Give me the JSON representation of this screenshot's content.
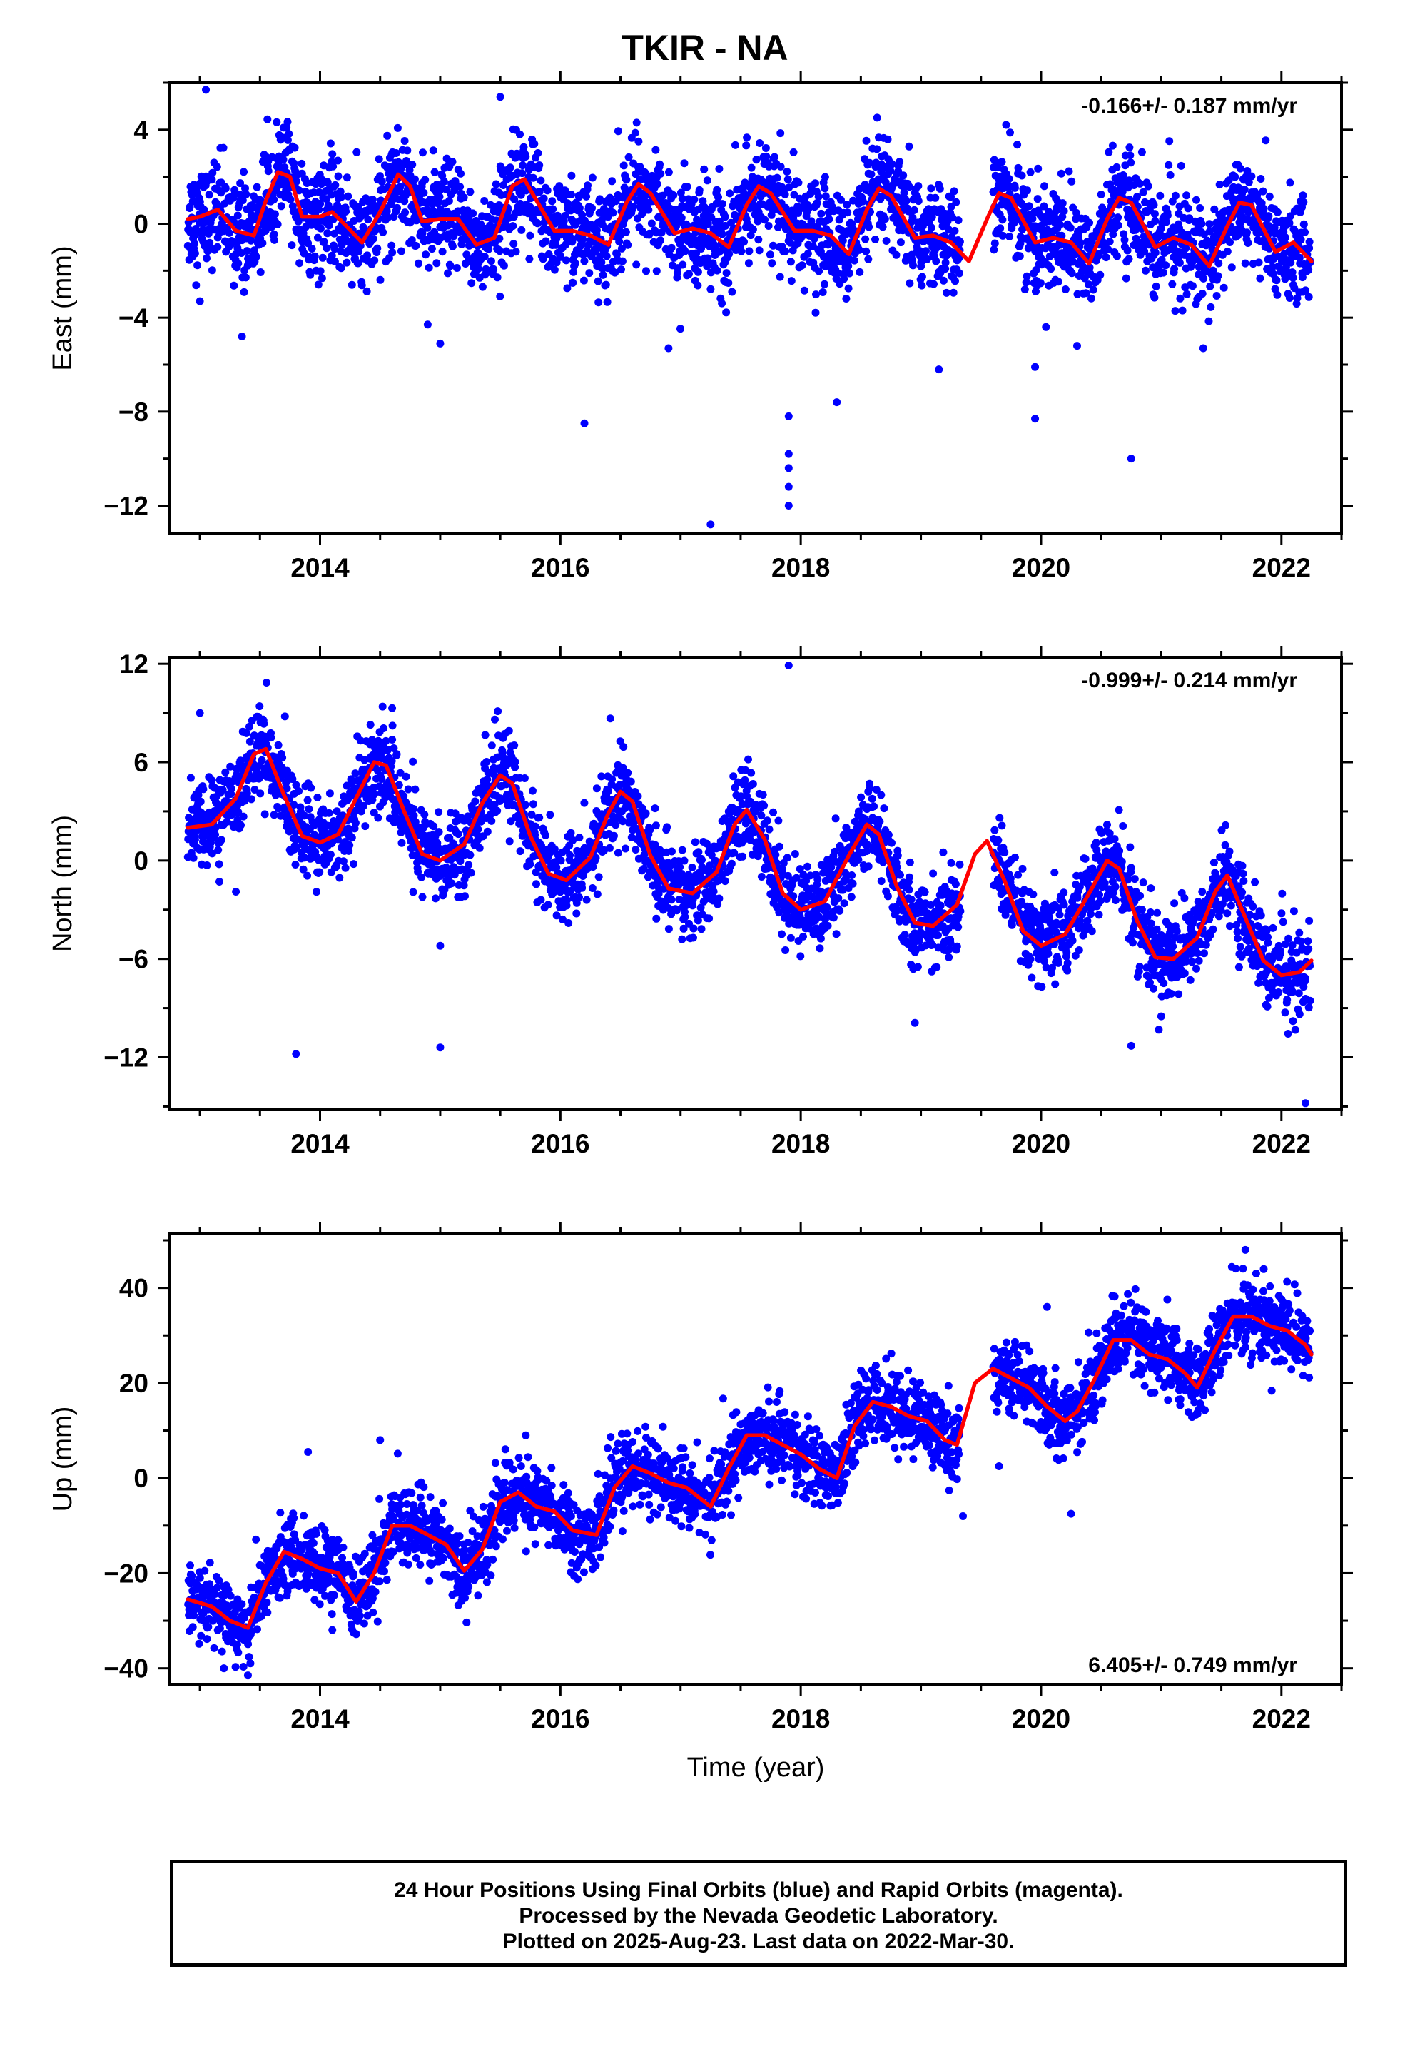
{
  "title": "TKIR - NA",
  "footer": {
    "line1": "24 Hour Positions Using Final Orbits (blue) and Rapid Orbits (magenta).",
    "line2": "Processed by the Nevada Geodetic Laboratory.",
    "line3": "Plotted on 2025-Aug-23. Last data on 2022-Mar-30."
  },
  "colors": {
    "points": "#0000ff",
    "fit": "#ff0000",
    "frame": "#000000"
  },
  "chart_data": [
    {
      "type": "scatter",
      "ylabel": "East (mm)",
      "xlabel": "",
      "xlim": [
        2012.75,
        2022.5
      ],
      "ylim": [
        -13.2,
        6.0
      ],
      "xticks": [
        2014,
        2016,
        2018,
        2020,
        2022
      ],
      "yticks": [
        4,
        0,
        -4,
        -8,
        -12
      ],
      "rate_label": "-0.166+/- 0.187 mm/yr",
      "rate_position": "top-right",
      "fit": {
        "x": [
          2012.9,
          2013.0,
          2013.15,
          2013.3,
          2013.45,
          2013.55,
          2013.65,
          2013.75,
          2013.85,
          2014.0,
          2014.1,
          2014.2,
          2014.35,
          2014.5,
          2014.65,
          2014.75,
          2014.85,
          2015.0,
          2015.15,
          2015.3,
          2015.45,
          2015.6,
          2015.7,
          2015.8,
          2015.95,
          2016.1,
          2016.25,
          2016.4,
          2016.55,
          2016.65,
          2016.75,
          2016.95,
          2017.1,
          2017.25,
          2017.4,
          2017.55,
          2017.65,
          2017.75,
          2017.95,
          2018.1,
          2018.25,
          2018.4,
          2018.55,
          2018.65,
          2018.75,
          2018.95,
          2019.1,
          2019.25,
          2019.4,
          2019.55,
          2019.65,
          2019.75,
          2019.95,
          2020.1,
          2020.25,
          2020.4,
          2020.55,
          2020.65,
          2020.75,
          2020.95,
          2021.1,
          2021.25,
          2021.4,
          2021.55,
          2021.65,
          2021.75,
          2021.95,
          2022.1,
          2022.25
        ],
        "y": [
          0.2,
          0.3,
          0.6,
          -0.3,
          -0.5,
          1.0,
          2.2,
          2.0,
          0.3,
          0.3,
          0.5,
          0.0,
          -0.8,
          0.5,
          2.1,
          1.6,
          0.1,
          0.2,
          0.2,
          -0.9,
          -0.6,
          1.6,
          1.9,
          1.0,
          -0.3,
          -0.3,
          -0.5,
          -0.9,
          0.9,
          1.7,
          1.3,
          -0.4,
          -0.2,
          -0.4,
          -1.0,
          0.8,
          1.6,
          1.3,
          -0.3,
          -0.3,
          -0.5,
          -1.3,
          0.6,
          1.5,
          1.2,
          -0.6,
          -0.5,
          -0.8,
          -1.6,
          0.2,
          1.3,
          1.1,
          -0.8,
          -0.6,
          -0.8,
          -1.7,
          0.2,
          1.1,
          0.9,
          -1.0,
          -0.6,
          -0.9,
          -1.8,
          -0.1,
          0.9,
          0.8,
          -1.2,
          -0.8,
          -1.6
        ]
      },
      "outliers": [
        {
          "x": 2013.0,
          "y": -3.3
        },
        {
          "x": 2013.35,
          "y": -4.8
        },
        {
          "x": 2015.0,
          "y": -5.1
        },
        {
          "x": 2016.2,
          "y": -8.5
        },
        {
          "x": 2016.9,
          "y": -5.3
        },
        {
          "x": 2017.25,
          "y": -12.8
        },
        {
          "x": 2017.9,
          "y": -8.2
        },
        {
          "x": 2017.9,
          "y": -9.8
        },
        {
          "x": 2017.9,
          "y": -10.4
        },
        {
          "x": 2017.9,
          "y": -11.2
        },
        {
          "x": 2017.9,
          "y": -12.0
        },
        {
          "x": 2018.3,
          "y": -7.6
        },
        {
          "x": 2019.15,
          "y": -6.2
        },
        {
          "x": 2019.95,
          "y": -8.3
        },
        {
          "x": 2019.95,
          "y": -6.1
        },
        {
          "x": 2020.75,
          "y": -10.0
        },
        {
          "x": 2013.05,
          "y": 5.7
        },
        {
          "x": 2015.5,
          "y": 5.4
        },
        {
          "x": 2021.35,
          "y": -5.3
        },
        {
          "x": 2020.3,
          "y": -5.2
        }
      ],
      "gaps": [
        [
          2019.33,
          2019.6
        ]
      ],
      "scatter_sd": 1.1
    },
    {
      "type": "scatter",
      "ylabel": "North (mm)",
      "xlabel": "",
      "xlim": [
        2012.75,
        2022.5
      ],
      "ylim": [
        -15.2,
        12.4
      ],
      "xticks": [
        2014,
        2016,
        2018,
        2020,
        2022
      ],
      "yticks": [
        12,
        6,
        0,
        -6,
        -12
      ],
      "rate_label": "-0.999+/- 0.214 mm/yr",
      "rate_position": "top-right",
      "fit": {
        "x": [
          2012.9,
          2013.1,
          2013.3,
          2013.45,
          2013.55,
          2013.7,
          2013.85,
          2014.0,
          2014.15,
          2014.3,
          2014.45,
          2014.55,
          2014.7,
          2014.85,
          2015.0,
          2015.2,
          2015.35,
          2015.5,
          2015.6,
          2015.75,
          2015.9,
          2016.05,
          2016.25,
          2016.4,
          2016.5,
          2016.6,
          2016.75,
          2016.9,
          2017.1,
          2017.3,
          2017.45,
          2017.55,
          2017.7,
          2017.85,
          2018.0,
          2018.2,
          2018.4,
          2018.55,
          2018.65,
          2018.8,
          2018.95,
          2019.1,
          2019.3,
          2019.45,
          2019.55,
          2019.7,
          2019.85,
          2020.0,
          2020.2,
          2020.4,
          2020.55,
          2020.65,
          2020.8,
          2020.95,
          2021.1,
          2021.3,
          2021.45,
          2021.55,
          2021.7,
          2021.85,
          2022.0,
          2022.15,
          2022.25
        ],
        "y": [
          2.0,
          2.2,
          3.8,
          6.5,
          6.8,
          4.0,
          1.5,
          1.1,
          1.6,
          3.8,
          6.0,
          5.8,
          3.0,
          0.4,
          0.0,
          1.0,
          3.5,
          5.2,
          4.7,
          1.5,
          -0.8,
          -1.2,
          0.2,
          2.9,
          4.2,
          3.6,
          0.3,
          -1.7,
          -2.0,
          -0.7,
          2.2,
          3.1,
          1.3,
          -2.0,
          -3.0,
          -2.5,
          0.3,
          2.2,
          1.6,
          -1.6,
          -3.8,
          -4.0,
          -2.7,
          0.4,
          1.2,
          -1.3,
          -4.3,
          -5.2,
          -4.5,
          -2.0,
          0.0,
          -0.5,
          -3.7,
          -5.9,
          -6.0,
          -4.7,
          -1.9,
          -0.9,
          -3.5,
          -6.1,
          -7.0,
          -6.8,
          -6.1
        ]
      },
      "outliers": [
        {
          "x": 2013.8,
          "y": -11.8
        },
        {
          "x": 2015.0,
          "y": -11.4
        },
        {
          "x": 2015.0,
          "y": -5.2
        },
        {
          "x": 2017.9,
          "y": 11.9
        },
        {
          "x": 2018.95,
          "y": -9.9
        },
        {
          "x": 2020.75,
          "y": -11.3
        },
        {
          "x": 2022.2,
          "y": -14.8
        },
        {
          "x": 2013.0,
          "y": 9.0
        },
        {
          "x": 2014.6,
          "y": 9.3
        },
        {
          "x": 2013.3,
          "y": -1.9
        },
        {
          "x": 2021.0,
          "y": -9.5
        }
      ],
      "gaps": [
        [
          2019.33,
          2019.6
        ]
      ],
      "scatter_sd": 1.3
    },
    {
      "type": "scatter",
      "ylabel": "Up (mm)",
      "xlabel": "Time (year)",
      "xlim": [
        2012.75,
        2022.5
      ],
      "ylim": [
        -43.5,
        51.5
      ],
      "xticks": [
        2014,
        2016,
        2018,
        2020,
        2022
      ],
      "yticks": [
        40,
        20,
        0,
        -20,
        -40
      ],
      "rate_label": "6.405+/- 0.749 mm/yr",
      "rate_position": "bottom-right",
      "fit": {
        "x": [
          2012.9,
          2013.1,
          2013.25,
          2013.4,
          2013.55,
          2013.7,
          2013.85,
          2014.0,
          2014.15,
          2014.3,
          2014.45,
          2014.6,
          2014.75,
          2014.9,
          2015.05,
          2015.2,
          2015.35,
          2015.5,
          2015.65,
          2015.8,
          2015.95,
          2016.1,
          2016.3,
          2016.45,
          2016.6,
          2016.75,
          2016.9,
          2017.05,
          2017.25,
          2017.4,
          2017.55,
          2017.7,
          2017.85,
          2018.0,
          2018.15,
          2018.3,
          2018.45,
          2018.6,
          2018.75,
          2018.9,
          2019.05,
          2019.2,
          2019.3,
          2019.45,
          2019.6,
          2019.75,
          2019.9,
          2020.05,
          2020.2,
          2020.3,
          2020.45,
          2020.6,
          2020.75,
          2020.9,
          2021.05,
          2021.2,
          2021.3,
          2021.45,
          2021.6,
          2021.75,
          2021.9,
          2022.05,
          2022.2,
          2022.25
        ],
        "y": [
          -25.5,
          -27,
          -30,
          -31.5,
          -22,
          -15.5,
          -17,
          -19,
          -20,
          -26,
          -20,
          -10,
          -10,
          -12,
          -14,
          -19.5,
          -15,
          -5,
          -3,
          -6,
          -7,
          -11,
          -12,
          -2,
          2.5,
          1,
          -1,
          -2,
          -6,
          2,
          9,
          9,
          7,
          5,
          2,
          0,
          11,
          16,
          15,
          13,
          12,
          8,
          7,
          20,
          23,
          21,
          19,
          15,
          12,
          14,
          21,
          29,
          29,
          26,
          25,
          22,
          19,
          27,
          34,
          34,
          32,
          31,
          28,
          26
        ]
      },
      "outliers": [
        {
          "x": 2013.4,
          "y": -41.5
        },
        {
          "x": 2013.2,
          "y": -40.0
        },
        {
          "x": 2013.9,
          "y": 5.5
        },
        {
          "x": 2014.5,
          "y": 8.0
        },
        {
          "x": 2020.25,
          "y": -7.5
        },
        {
          "x": 2019.35,
          "y": -8.0
        },
        {
          "x": 2021.7,
          "y": 48.0
        },
        {
          "x": 2020.05,
          "y": 36.0
        },
        {
          "x": 2018.8,
          "y": 21.5
        },
        {
          "x": 2017.8,
          "y": 16.0
        },
        {
          "x": 2019.65,
          "y": 2.5
        }
      ],
      "gaps": [
        [
          2019.33,
          2019.6
        ]
      ],
      "scatter_sd": 4.0
    }
  ]
}
